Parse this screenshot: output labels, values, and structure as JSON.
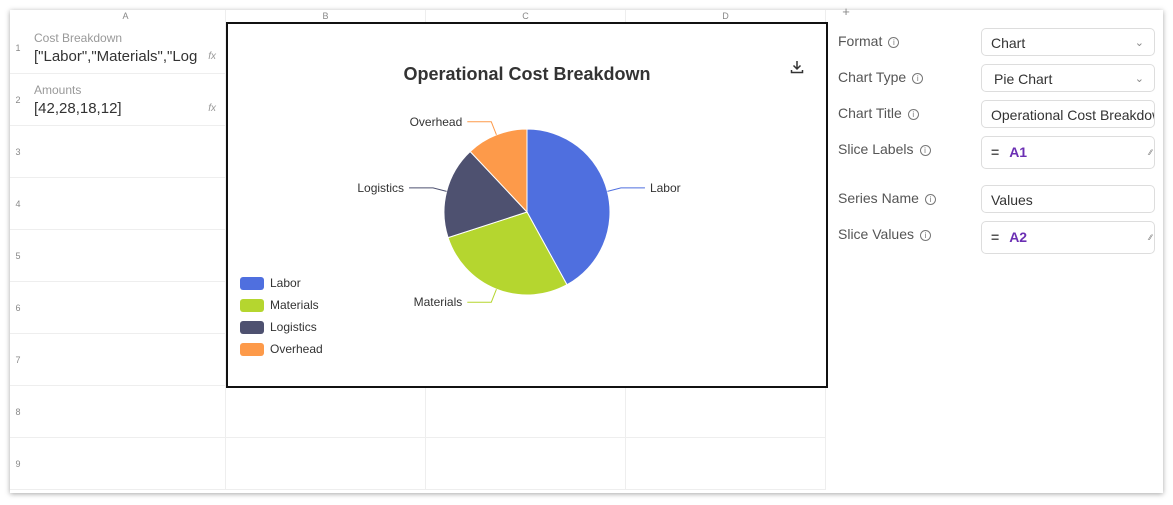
{
  "sheet": {
    "columns": [
      "A",
      "B",
      "C",
      "D"
    ],
    "add_column": "+",
    "rows": [
      "1",
      "2",
      "3",
      "4",
      "5",
      "6",
      "7",
      "8",
      "9"
    ],
    "cells": [
      {
        "label": "Cost Breakdown",
        "value": "[\"Labor\",\"Materials\",\"Log",
        "fx": "fx"
      },
      {
        "label": "Amounts",
        "value": "[42,28,18,12]",
        "fx": "fx"
      }
    ]
  },
  "chart_data": {
    "type": "pie",
    "title": "Operational Cost Breakdown",
    "categories": [
      "Labor",
      "Materials",
      "Logistics",
      "Overhead"
    ],
    "values": [
      42,
      28,
      18,
      12
    ],
    "colors": [
      "#4f6fdf",
      "#b5d62f",
      "#4e5170",
      "#fd9a4a"
    ],
    "legend": "bottom-left",
    "download_icon": "download-icon"
  },
  "panel": {
    "format": {
      "label": "Format",
      "value": "Chart"
    },
    "chart_type": {
      "label": "Chart Type",
      "value": "Pie Chart"
    },
    "chart_title": {
      "label": "Chart Title",
      "value": "Operational Cost Breakdown"
    },
    "slice_labels": {
      "label": "Slice Labels",
      "eq": "=",
      "ref": "A1"
    },
    "series_name": {
      "label": "Series Name",
      "value": "Values"
    },
    "slice_values": {
      "label": "Slice Values",
      "eq": "=",
      "ref": "A2"
    }
  }
}
